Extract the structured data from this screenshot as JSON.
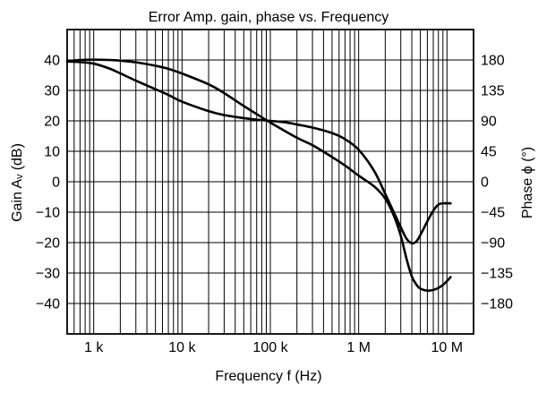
{
  "chart_data": {
    "type": "line",
    "title": "Error Amp. gain, phase vs. Frequency",
    "xlabel": "Frequency f (Hz)",
    "ylabel_left": "Gain Aᵥ (dB)",
    "ylabel_right": "Phase ϕ (°)",
    "x_scale": "log",
    "xlim": [
      500,
      20000000
    ],
    "ylim_left": [
      -50,
      50
    ],
    "ylim_right": [
      -225,
      225
    ],
    "x_ticks": [
      {
        "value": 1000,
        "label": "1 k"
      },
      {
        "value": 10000,
        "label": "10 k"
      },
      {
        "value": 100000,
        "label": "100 k"
      },
      {
        "value": 1000000,
        "label": "1 M"
      },
      {
        "value": 10000000,
        "label": "10 M"
      }
    ],
    "y_ticks_left": [
      40,
      30,
      20,
      10,
      0,
      -10,
      -20,
      -30,
      -40
    ],
    "y_tick_labels_left": [
      "40",
      "30",
      "20",
      "10",
      "0",
      "−10",
      "−20",
      "−30",
      "−40"
    ],
    "y_ticks_right": [
      180,
      135,
      90,
      45,
      0,
      -45,
      -90,
      -135,
      -180
    ],
    "y_tick_labels_right": [
      "180",
      "135",
      "90",
      "45",
      "0",
      "−45",
      "−90",
      "−135",
      "−180"
    ],
    "grid": true,
    "series": [
      {
        "axis": "left",
        "points": [
          [
            500,
            39.5
          ],
          [
            700,
            39.3
          ],
          [
            1000,
            38.8
          ],
          [
            1500,
            37.2
          ],
          [
            2000,
            35.6
          ],
          [
            3000,
            33.2
          ],
          [
            5000,
            30.4
          ],
          [
            7000,
            28.5
          ],
          [
            10000,
            26.3
          ],
          [
            20000,
            23.2
          ],
          [
            30000,
            21.9
          ],
          [
            50000,
            20.9
          ],
          [
            70000,
            20.4
          ],
          [
            100000,
            20.0
          ],
          [
            150000,
            19.5
          ],
          [
            200000,
            18.8
          ],
          [
            300000,
            17.8
          ],
          [
            500000,
            16.0
          ],
          [
            700000,
            14.0
          ],
          [
            1000000,
            10.5
          ],
          [
            1500000,
            3.5
          ],
          [
            2000000,
            -4.0
          ],
          [
            2500000,
            -10.0
          ],
          [
            3000000,
            -15.0
          ],
          [
            3500000,
            -18.8
          ],
          [
            4000000,
            -20.2
          ],
          [
            4500000,
            -19.6
          ],
          [
            5000000,
            -17.5
          ],
          [
            6000000,
            -13.0
          ],
          [
            7000000,
            -9.5
          ],
          [
            8000000,
            -7.5
          ],
          [
            9000000,
            -7.1
          ],
          [
            11000000,
            -7.1
          ]
        ]
      },
      {
        "axis": "right",
        "points": [
          [
            500,
            178.5
          ],
          [
            700,
            180.0
          ],
          [
            1000,
            180.5
          ],
          [
            1500,
            180.0
          ],
          [
            2000,
            179.0
          ],
          [
            3000,
            176.5
          ],
          [
            5000,
            171.5
          ],
          [
            7000,
            167.0
          ],
          [
            10000,
            160.0
          ],
          [
            20000,
            144.0
          ],
          [
            30000,
            131.0
          ],
          [
            50000,
            112.0
          ],
          [
            70000,
            100.0
          ],
          [
            100000,
            87.5
          ],
          [
            200000,
            65.0
          ],
          [
            300000,
            54.0
          ],
          [
            500000,
            36.5
          ],
          [
            700000,
            24.0
          ],
          [
            1000000,
            9.0
          ],
          [
            1500000,
            -7.0
          ],
          [
            2000000,
            -25.0
          ],
          [
            2500000,
            -50.0
          ],
          [
            3000000,
            -80.0
          ],
          [
            3500000,
            -115.0
          ],
          [
            4000000,
            -140.0
          ],
          [
            4500000,
            -152.0
          ],
          [
            5000000,
            -158.0
          ],
          [
            6000000,
            -161.0
          ],
          [
            7000000,
            -160.0
          ],
          [
            8000000,
            -157.0
          ],
          [
            9000000,
            -152.5
          ],
          [
            10000000,
            -147.0
          ],
          [
            11000000,
            -141.0
          ]
        ]
      }
    ]
  }
}
